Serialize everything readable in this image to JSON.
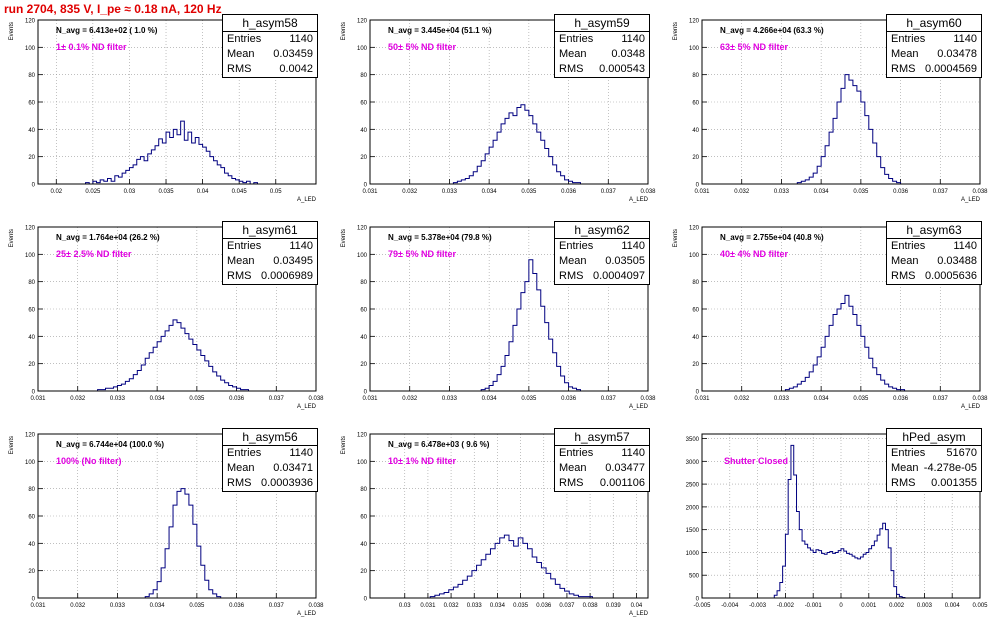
{
  "title": "run 2704,   835 V, I_pe ≈ 0.18 nA, 120 Hz",
  "colors": {
    "title": "#e00000",
    "filter_label": "#e000e0",
    "histogram": "#000080",
    "grid": "#999999"
  },
  "chart_data": [
    {
      "type": "histogram",
      "name": "h_asym58",
      "n_avg": "N_avg = 6.413e+02 ( 1.0 %)",
      "filter": "1± 0.1% ND filter",
      "stats": {
        "entries": "1140",
        "mean": "0.03459",
        "rms": "0.0042"
      },
      "ylabel": "Events",
      "xlabel": "A_LED",
      "xlim": [
        0.0175,
        0.0555
      ],
      "ylim": [
        0,
        120
      ],
      "yticks": [
        "0",
        "20",
        "40",
        "60",
        "80",
        "100",
        "120"
      ],
      "xticks": [
        "0.02",
        "0.025",
        "0.03",
        "0.035",
        "0.04",
        "0.045",
        "0.05"
      ],
      "xtick_values": [
        0.02,
        0.025,
        0.03,
        0.035,
        0.04,
        0.045,
        0.05
      ],
      "x_start": 0.024,
      "x_step": 0.0005,
      "values": [
        1,
        0,
        2,
        1,
        3,
        2,
        4,
        2,
        6,
        5,
        8,
        10,
        12,
        14,
        18,
        20,
        17,
        22,
        25,
        28,
        33,
        30,
        38,
        34,
        40,
        36,
        46,
        32,
        38,
        30,
        34,
        29,
        27,
        24,
        20,
        17,
        14,
        12,
        8,
        6,
        4,
        3,
        2,
        1,
        2,
        0,
        1
      ]
    },
    {
      "type": "histogram",
      "name": "h_asym59",
      "n_avg": "N_avg = 3.445e+04 (51.1 %)",
      "filter": "50± 5% ND filter",
      "stats": {
        "entries": "1140",
        "mean": "0.0348",
        "rms": "0.000543"
      },
      "ylabel": "Events",
      "xlabel": "A_LED",
      "xlim": [
        0.031,
        0.038
      ],
      "ylim": [
        0,
        120
      ],
      "yticks": [
        "0",
        "20",
        "40",
        "60",
        "80",
        "100",
        "120"
      ],
      "xticks": [
        "0.031",
        "0.032",
        "0.033",
        "0.034",
        "0.035",
        "0.036",
        "0.037",
        "0.038"
      ],
      "xtick_values": [
        0.031,
        0.032,
        0.033,
        0.034,
        0.035,
        0.036,
        0.037,
        0.038
      ],
      "x_start": 0.0331,
      "x_step": 0.0001,
      "values": [
        1,
        2,
        3,
        4,
        6,
        9,
        13,
        17,
        22,
        27,
        32,
        38,
        44,
        48,
        52,
        50,
        56,
        58,
        54,
        50,
        44,
        38,
        32,
        26,
        20,
        14,
        9,
        6,
        3,
        2,
        1,
        1
      ]
    },
    {
      "type": "histogram",
      "name": "h_asym60",
      "n_avg": "N_avg = 4.266e+04 (63.3 %)",
      "filter": "63± 5% ND filter",
      "stats": {
        "entries": "1140",
        "mean": "0.03478",
        "rms": "0.0004569"
      },
      "ylabel": "Events",
      "xlabel": "A_LED",
      "xlim": [
        0.031,
        0.038
      ],
      "ylim": [
        0,
        120
      ],
      "yticks": [
        "0",
        "20",
        "40",
        "60",
        "80",
        "100",
        "120"
      ],
      "xticks": [
        "0.031",
        "0.032",
        "0.033",
        "0.034",
        "0.035",
        "0.036",
        "0.037",
        "0.038"
      ],
      "xtick_values": [
        0.031,
        0.032,
        0.033,
        0.034,
        0.035,
        0.036,
        0.037,
        0.038
      ],
      "x_start": 0.0334,
      "x_step": 0.0001,
      "values": [
        1,
        2,
        3,
        5,
        8,
        13,
        20,
        28,
        38,
        48,
        60,
        70,
        80,
        76,
        72,
        68,
        60,
        50,
        40,
        30,
        20,
        12,
        7,
        4,
        2,
        1
      ]
    },
    {
      "type": "histogram",
      "name": "h_asym61",
      "n_avg": "N_avg = 1.764e+04 (26.2 %)",
      "filter": "25± 2.5% ND filter",
      "stats": {
        "entries": "1140",
        "mean": "0.03495",
        "rms": "0.0006989"
      },
      "ylabel": "Events",
      "xlabel": "A_LED",
      "xlim": [
        0.031,
        0.038
      ],
      "ylim": [
        0,
        120
      ],
      "yticks": [
        "0",
        "20",
        "40",
        "60",
        "80",
        "100",
        "120"
      ],
      "xticks": [
        "0.031",
        "0.032",
        "0.033",
        "0.034",
        "0.035",
        "0.036",
        "0.037",
        "0.038"
      ],
      "xtick_values": [
        0.031,
        0.032,
        0.033,
        0.034,
        0.035,
        0.036,
        0.037,
        0.038
      ],
      "x_start": 0.0325,
      "x_step": 0.0001,
      "values": [
        1,
        1,
        2,
        2,
        3,
        4,
        5,
        7,
        9,
        12,
        15,
        19,
        24,
        28,
        32,
        36,
        40,
        44,
        48,
        52,
        50,
        46,
        42,
        38,
        34,
        30,
        26,
        22,
        18,
        14,
        11,
        8,
        6,
        4,
        3,
        2,
        1,
        1
      ]
    },
    {
      "type": "histogram",
      "name": "h_asym62",
      "n_avg": "N_avg = 5.378e+04 (79.8 %)",
      "filter": "79± 5% ND filter",
      "stats": {
        "entries": "1140",
        "mean": "0.03505",
        "rms": "0.0004097"
      },
      "ylabel": "Events",
      "xlabel": "A_LED",
      "xlim": [
        0.031,
        0.038
      ],
      "ylim": [
        0,
        120
      ],
      "yticks": [
        "0",
        "20",
        "40",
        "60",
        "80",
        "100",
        "120"
      ],
      "xticks": [
        "0.031",
        "0.032",
        "0.033",
        "0.034",
        "0.035",
        "0.036",
        "0.037",
        "0.038"
      ],
      "xtick_values": [
        0.031,
        0.032,
        0.033,
        0.034,
        0.035,
        0.036,
        0.037,
        0.038
      ],
      "x_start": 0.0338,
      "x_step": 0.0001,
      "values": [
        1,
        2,
        4,
        7,
        12,
        18,
        26,
        36,
        48,
        60,
        72,
        80,
        96,
        86,
        74,
        62,
        50,
        38,
        28,
        18,
        11,
        6,
        3,
        2,
        1
      ]
    },
    {
      "type": "histogram",
      "name": "h_asym63",
      "n_avg": "N_avg = 2.755e+04 (40.8 %)",
      "filter": "40± 4% ND filter",
      "stats": {
        "entries": "1140",
        "mean": "0.03488",
        "rms": "0.0005636"
      },
      "ylabel": "Events",
      "xlabel": "A_LED",
      "xlim": [
        0.031,
        0.038
      ],
      "ylim": [
        0,
        120
      ],
      "yticks": [
        "0",
        "20",
        "40",
        "60",
        "80",
        "100",
        "120"
      ],
      "xticks": [
        "0.031",
        "0.032",
        "0.033",
        "0.034",
        "0.035",
        "0.036",
        "0.037",
        "0.038"
      ],
      "xtick_values": [
        0.031,
        0.032,
        0.033,
        0.034,
        0.035,
        0.036,
        0.037,
        0.038
      ],
      "x_start": 0.0331,
      "x_step": 0.0001,
      "values": [
        1,
        2,
        3,
        5,
        7,
        10,
        14,
        19,
        25,
        32,
        40,
        48,
        56,
        60,
        64,
        70,
        62,
        56,
        48,
        40,
        32,
        24,
        17,
        12,
        8,
        5,
        3,
        2,
        1,
        1
      ]
    },
    {
      "type": "histogram",
      "name": "h_asym56",
      "n_avg": "N_avg = 6.744e+04 (100.0 %)",
      "filter": "100% (No filter)",
      "stats": {
        "entries": "1140",
        "mean": "0.03471",
        "rms": "0.0003936"
      },
      "ylabel": "Events",
      "xlabel": "A_LED",
      "xlim": [
        0.031,
        0.038
      ],
      "ylim": [
        0,
        120
      ],
      "yticks": [
        "0",
        "20",
        "40",
        "60",
        "80",
        "100",
        "120"
      ],
      "xticks": [
        "0.031",
        "0.032",
        "0.033",
        "0.034",
        "0.035",
        "0.036",
        "0.037",
        "0.038"
      ],
      "xtick_values": [
        0.031,
        0.032,
        0.033,
        0.034,
        0.035,
        0.036,
        0.037,
        0.038
      ],
      "x_start": 0.0337,
      "x_step": 0.0001,
      "values": [
        1,
        3,
        6,
        12,
        22,
        36,
        52,
        68,
        78,
        80,
        76,
        68,
        54,
        38,
        24,
        13,
        6,
        3,
        1
      ]
    },
    {
      "type": "histogram",
      "name": "h_asym57",
      "n_avg": "N_avg = 6.478e+03 ( 9.6 %)",
      "filter": "10± 1% ND filter",
      "stats": {
        "entries": "1140",
        "mean": "0.03477",
        "rms": "0.001106"
      },
      "ylabel": "Events",
      "xlabel": "A_LED",
      "xlim": [
        0.0285,
        0.0405
      ],
      "ylim": [
        0,
        120
      ],
      "yticks": [
        "0",
        "20",
        "40",
        "60",
        "80",
        "100",
        "120"
      ],
      "xticks": [
        "0.03",
        "0.031",
        "0.032",
        "0.033",
        "0.034",
        "0.035",
        "0.036",
        "0.037",
        "0.038",
        "0.039",
        "0.04"
      ],
      "xtick_values": [
        0.03,
        0.031,
        0.032,
        0.033,
        0.034,
        0.035,
        0.036,
        0.037,
        0.038,
        0.039,
        0.04
      ],
      "x_start": 0.0311,
      "x_step": 0.0002,
      "values": [
        1,
        2,
        3,
        4,
        6,
        8,
        10,
        13,
        16,
        20,
        24,
        28,
        32,
        36,
        40,
        44,
        46,
        42,
        38,
        44,
        40,
        36,
        30,
        26,
        22,
        18,
        14,
        10,
        7,
        5,
        3,
        2,
        1,
        1,
        1
      ]
    },
    {
      "type": "histogram",
      "name": "hPed_asym",
      "n_avg": "",
      "filter": "Shutter Closed",
      "stats": {
        "entries": "51670",
        "mean": "-4.278e-05",
        "rms": "0.001355"
      },
      "ylabel": "",
      "xlabel": "",
      "xlim": [
        -0.005,
        0.005
      ],
      "ylim": [
        0,
        3600
      ],
      "yticks": [
        "0",
        "500",
        "1000",
        "1500",
        "2000",
        "2500",
        "3000",
        "3500"
      ],
      "xticks": [
        "-0.005",
        "-0.004",
        "-0.003",
        "-0.002",
        "-0.001",
        "0",
        "0.001",
        "0.002",
        "0.003",
        "0.004",
        "0.005"
      ],
      "xtick_values": [
        -0.005,
        -0.004,
        -0.003,
        -0.002,
        -0.001,
        0,
        0.001,
        0.002,
        0.003,
        0.004,
        0.005
      ],
      "x_start": -0.0024,
      "x_step": 0.0001,
      "values": [
        60,
        160,
        340,
        700,
        1400,
        2600,
        3350,
        2700,
        1900,
        1500,
        1250,
        1180,
        1100,
        1050,
        1000,
        1060,
        1040,
        980,
        960,
        1000,
        1020,
        980,
        1000,
        1040,
        1080,
        1030,
        980,
        960,
        920,
        880,
        860,
        900,
        960,
        1000,
        1080,
        1150,
        1250,
        1380,
        1520,
        1640,
        1500,
        1100,
        600,
        250,
        80,
        30,
        10
      ]
    }
  ]
}
